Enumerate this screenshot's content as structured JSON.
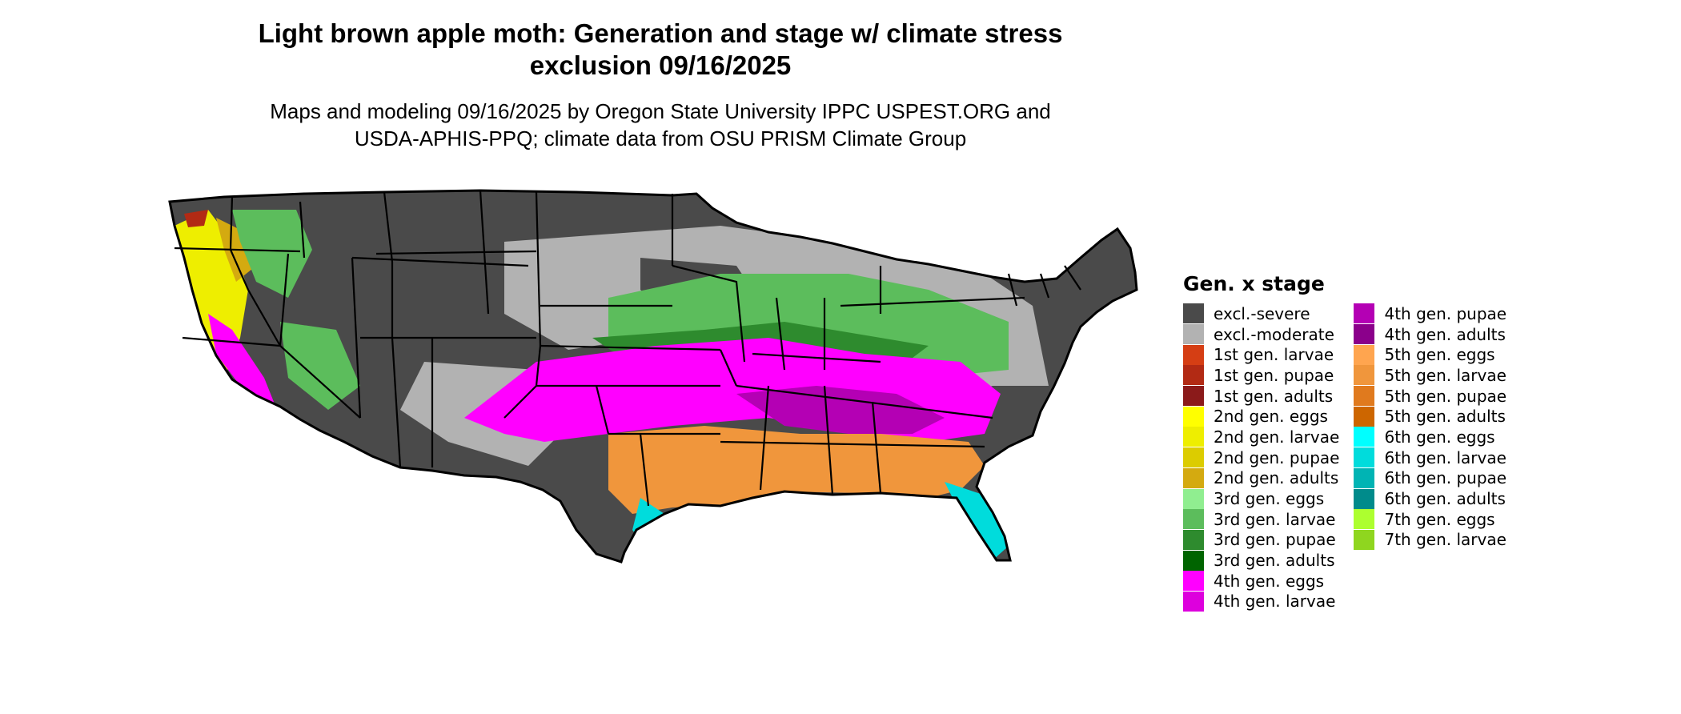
{
  "title_line1": "Light brown apple moth: Generation and stage w/ climate stress",
  "title_line2": "exclusion 09/16/2025",
  "subtitle_line1": "Maps and modeling 09/16/2025 by Oregon State University IPPC USPEST.ORG and",
  "subtitle_line2": "USDA-APHIS-PPQ; climate data from OSU PRISM Climate Group",
  "legend": {
    "title": "Gen. x stage",
    "col1": [
      {
        "label": "excl.-severe",
        "color": "#4a4a4a"
      },
      {
        "label": "excl.-moderate",
        "color": "#b2b2b2"
      },
      {
        "label": "1st gen. larvae",
        "color": "#d53e14"
      },
      {
        "label": "1st gen. pupae",
        "color": "#b22a14"
      },
      {
        "label": "1st gen. adults",
        "color": "#8b1a1a"
      },
      {
        "label": "2nd gen. eggs",
        "color": "#ffff00"
      },
      {
        "label": "2nd gen. larvae",
        "color": "#eeee00"
      },
      {
        "label": "2nd gen. pupae",
        "color": "#dccc00"
      },
      {
        "label": "2nd gen. adults",
        "color": "#d4aa10"
      },
      {
        "label": "3rd gen. eggs",
        "color": "#90ee90"
      },
      {
        "label": "3rd gen. larvae",
        "color": "#5cbd5c"
      },
      {
        "label": "3rd gen. pupae",
        "color": "#2e8b2e"
      },
      {
        "label": "3rd gen. adults",
        "color": "#006400"
      },
      {
        "label": "4th gen. eggs",
        "color": "#ff00ff"
      },
      {
        "label": "4th gen. larvae",
        "color": "#dd00dd"
      }
    ],
    "col2": [
      {
        "label": "4th gen. pupae",
        "color": "#b400b4"
      },
      {
        "label": "4th gen. adults",
        "color": "#8b008b"
      },
      {
        "label": "5th gen. eggs",
        "color": "#ffa54f"
      },
      {
        "label": "5th gen. larvae",
        "color": "#f0963c"
      },
      {
        "label": "5th gen. pupae",
        "color": "#e07a1e"
      },
      {
        "label": "5th gen. adults",
        "color": "#cd6600"
      },
      {
        "label": "6th gen. eggs",
        "color": "#00ffff"
      },
      {
        "label": "6th gen. larvae",
        "color": "#00dcdc"
      },
      {
        "label": "6th gen. pupae",
        "color": "#00b4b4"
      },
      {
        "label": "6th gen. adults",
        "color": "#008b8b"
      },
      {
        "label": "7th gen. eggs",
        "color": "#adff2f"
      },
      {
        "label": "7th gen. larvae",
        "color": "#8fd61f"
      }
    ]
  }
}
